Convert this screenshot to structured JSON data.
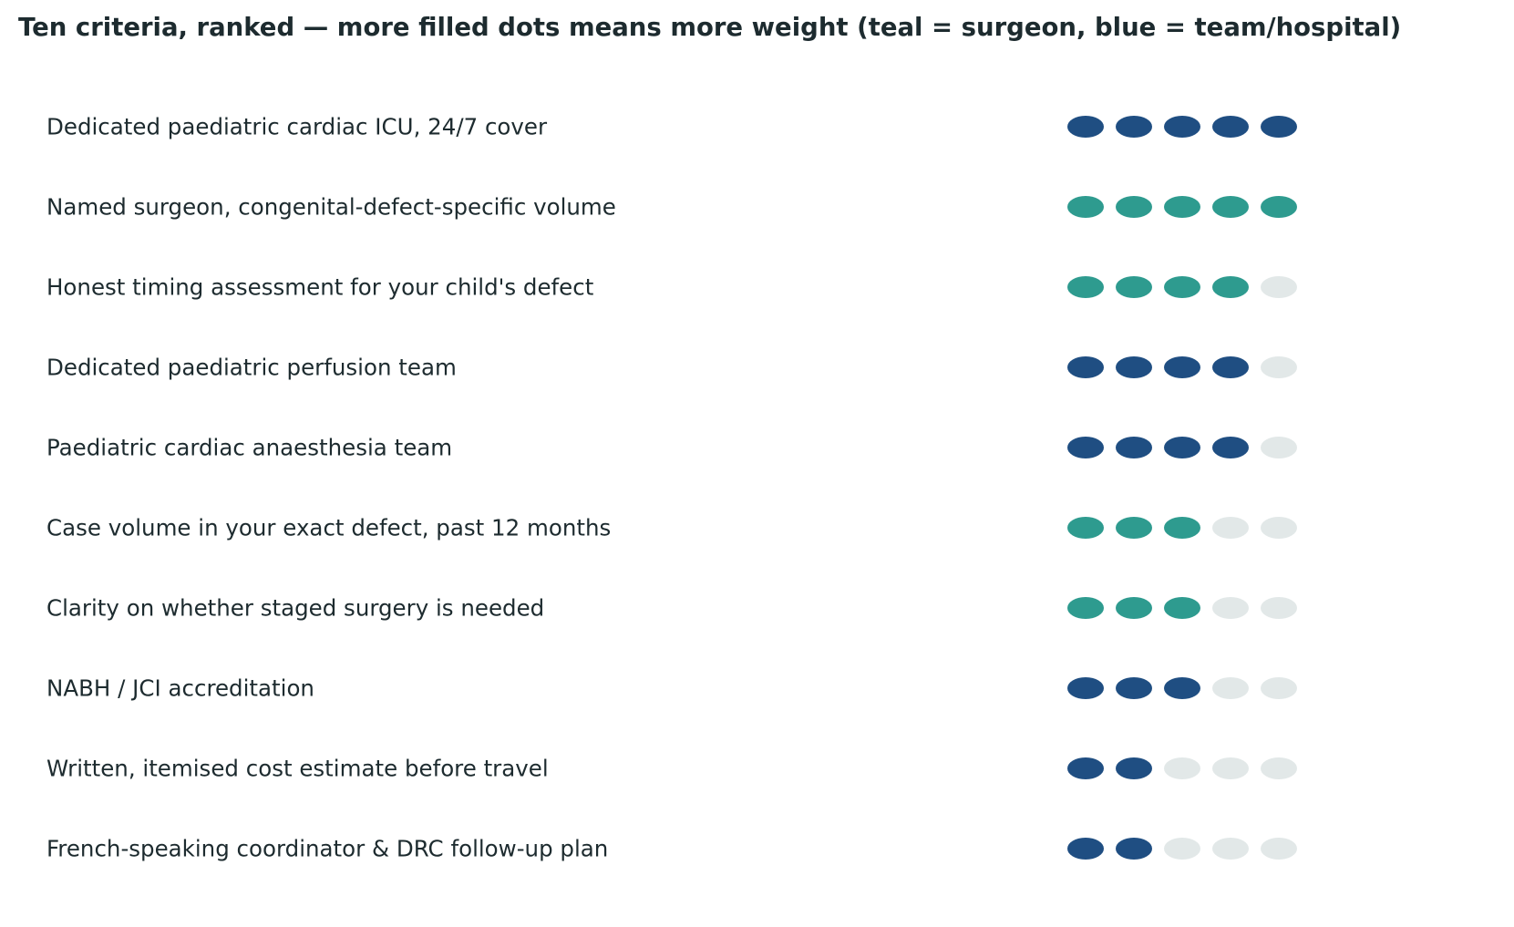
{
  "chart_data": {
    "type": "dot-rating",
    "title": "Ten criteria, ranked — more filled dots means more weight (teal = surgeon, blue = team/hospital)",
    "max_dots": 5,
    "colors": {
      "surgeon": "#2e9b8f",
      "team_hospital": "#1f4e82",
      "empty": "#e2e8e8"
    },
    "rows": [
      {
        "label": "Dedicated paediatric cardiac ICU, 24/7 cover",
        "category": "team_hospital",
        "value": 5
      },
      {
        "label": "Named surgeon, congenital-defect-specific volume",
        "category": "surgeon",
        "value": 5
      },
      {
        "label": "Honest timing assessment for your child's defect",
        "category": "surgeon",
        "value": 4
      },
      {
        "label": "Dedicated paediatric perfusion team",
        "category": "team_hospital",
        "value": 4
      },
      {
        "label": "Paediatric cardiac anaesthesia team",
        "category": "team_hospital",
        "value": 4
      },
      {
        "label": "Case volume in your exact defect, past 12 months",
        "category": "surgeon",
        "value": 3
      },
      {
        "label": "Clarity on whether staged surgery is needed",
        "category": "surgeon",
        "value": 3
      },
      {
        "label": "NABH / JCI accreditation",
        "category": "team_hospital",
        "value": 3
      },
      {
        "label": "Written, itemised cost estimate before travel",
        "category": "team_hospital",
        "value": 2
      },
      {
        "label": "French-speaking coordinator & DRC follow-up plan",
        "category": "team_hospital",
        "value": 2
      }
    ]
  }
}
